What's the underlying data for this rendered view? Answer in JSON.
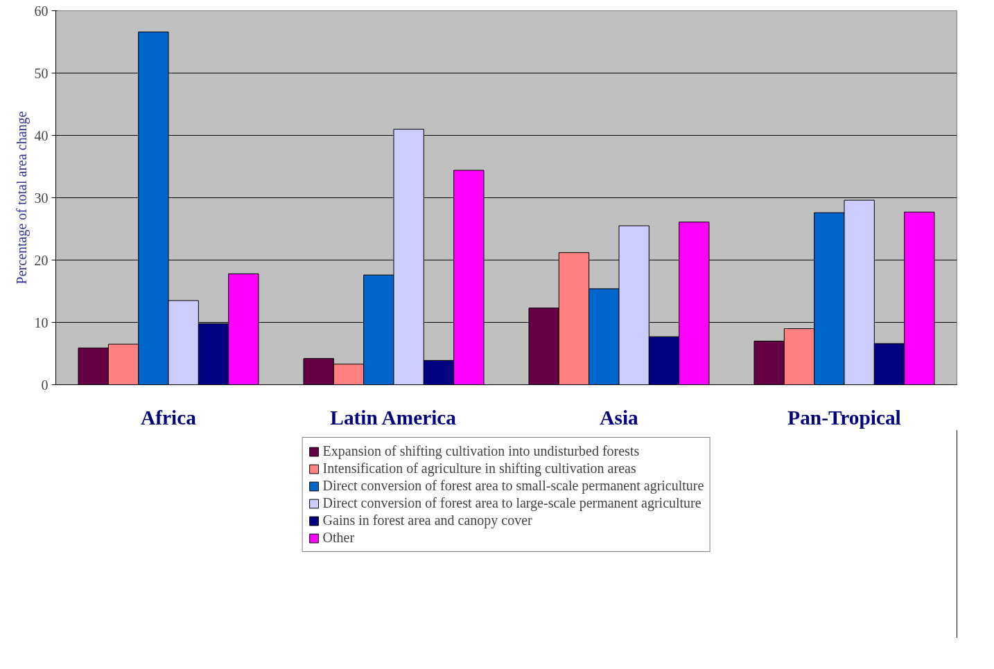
{
  "chart_data": {
    "type": "bar",
    "ylabel": "Percentage of total area change",
    "categories": [
      "Africa",
      "Latin America",
      "Asia",
      "Pan-Tropical"
    ],
    "series": [
      {
        "name": "Expansion of shifting cultivation into undisturbed forests",
        "color": "#660044",
        "values": [
          5.9,
          4.2,
          12.3,
          7.0
        ]
      },
      {
        "name": "Intensification of agriculture in shifting cultivation areas",
        "color": "#ff8080",
        "values": [
          6.5,
          3.3,
          21.2,
          9.0
        ]
      },
      {
        "name": "Direct conversion of forest area to small-scale permanent agriculture",
        "color": "#0066cc",
        "values": [
          56.6,
          17.6,
          15.4,
          27.6
        ]
      },
      {
        "name": "Direct conversion of forest area to large-scale permanent agriculture",
        "color": "#ccccff",
        "values": [
          13.5,
          41.0,
          25.5,
          29.6
        ]
      },
      {
        "name": "Gains in forest area and canopy cover",
        "color": "#000080",
        "values": [
          9.8,
          3.9,
          7.7,
          6.6
        ]
      },
      {
        "name": "Other",
        "color": "#ff00ff",
        "values": [
          17.8,
          34.4,
          26.1,
          27.7
        ]
      }
    ],
    "ylim": [
      0,
      60
    ],
    "yticks": [
      0,
      10,
      20,
      30,
      40,
      50,
      60
    ],
    "grid": "y",
    "legend": "bottom"
  }
}
